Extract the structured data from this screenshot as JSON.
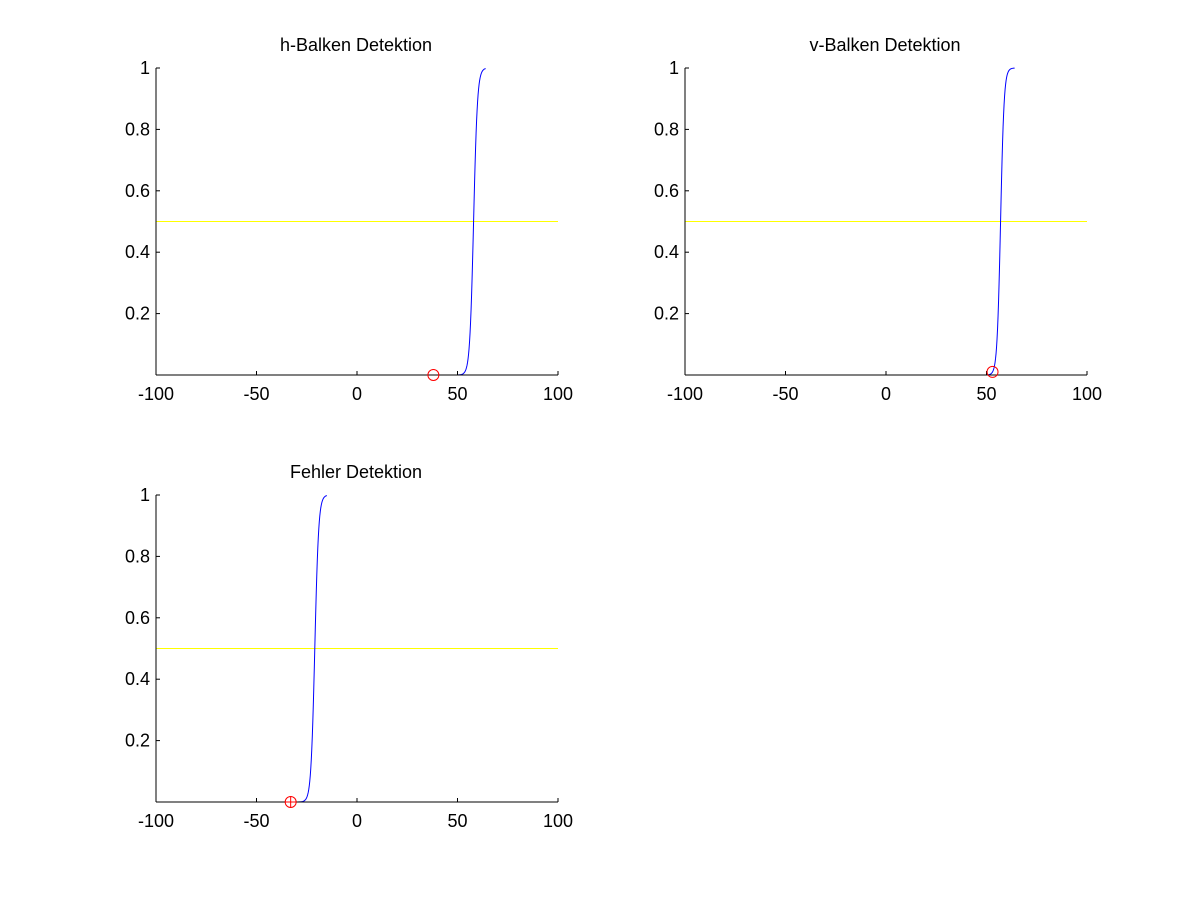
{
  "figure": {
    "background": "#ffffff"
  },
  "colors": {
    "curve": "#0000ff",
    "threshold": "#ffff00",
    "marker": "#ff0000",
    "axis": "#000000"
  },
  "chart_data": [
    {
      "type": "line",
      "title": "h-Balken Detektion",
      "xlim": [
        -100,
        100
      ],
      "ylim": [
        0,
        1
      ],
      "xticks": [
        -100,
        -50,
        0,
        50,
        100
      ],
      "yticks": [
        0.2,
        0.4,
        0.6,
        0.8,
        1
      ],
      "xtick_labels": [
        "-100",
        "-50",
        "0",
        "50",
        "100"
      ],
      "ytick_labels": [
        "0.2",
        "0.4",
        "0.6",
        "0.8",
        "1"
      ],
      "grid": false,
      "series": [
        {
          "kind": "sigmoid",
          "color": "#0000ff",
          "x_range": [
            -100,
            64
          ],
          "center": 58,
          "steepness": 1.05
        }
      ],
      "threshold": 0.5,
      "markers": [
        {
          "x": 38,
          "y": 0,
          "shape": "circle"
        }
      ]
    },
    {
      "type": "line",
      "title": "v-Balken Detektion",
      "xlim": [
        -100,
        100
      ],
      "ylim": [
        0,
        1
      ],
      "xticks": [
        -100,
        -50,
        0,
        50,
        100
      ],
      "yticks": [
        0.2,
        0.4,
        0.6,
        0.8,
        1
      ],
      "xtick_labels": [
        "-100",
        "-50",
        "0",
        "50",
        "100"
      ],
      "ytick_labels": [
        "0.2",
        "0.4",
        "0.6",
        "0.8",
        "1"
      ],
      "grid": false,
      "series": [
        {
          "kind": "sigmoid",
          "color": "#0000ff",
          "x_range": [
            -100,
            64
          ],
          "center": 57,
          "steepness": 1.15
        }
      ],
      "threshold": 0.5,
      "markers": [
        {
          "x": 53,
          "y": 0.01,
          "shape": "circle"
        }
      ]
    },
    {
      "type": "line",
      "title": "Fehler Detektion",
      "xlim": [
        -100,
        100
      ],
      "ylim": [
        0,
        1
      ],
      "xticks": [
        -100,
        -50,
        0,
        50,
        100
      ],
      "yticks": [
        0.2,
        0.4,
        0.6,
        0.8,
        1
      ],
      "xtick_labels": [
        "-100",
        "-50",
        "0",
        "50",
        "100"
      ],
      "ytick_labels": [
        "0.2",
        "0.4",
        "0.6",
        "0.8",
        "1"
      ],
      "grid": false,
      "series": [
        {
          "kind": "sigmoid",
          "color": "#0000ff",
          "x_range": [
            -100,
            -15
          ],
          "center": -21,
          "steepness": 1.05
        }
      ],
      "threshold": 0.5,
      "markers": [
        {
          "x": -33,
          "y": 0,
          "shape": "circle-plus"
        }
      ]
    }
  ]
}
